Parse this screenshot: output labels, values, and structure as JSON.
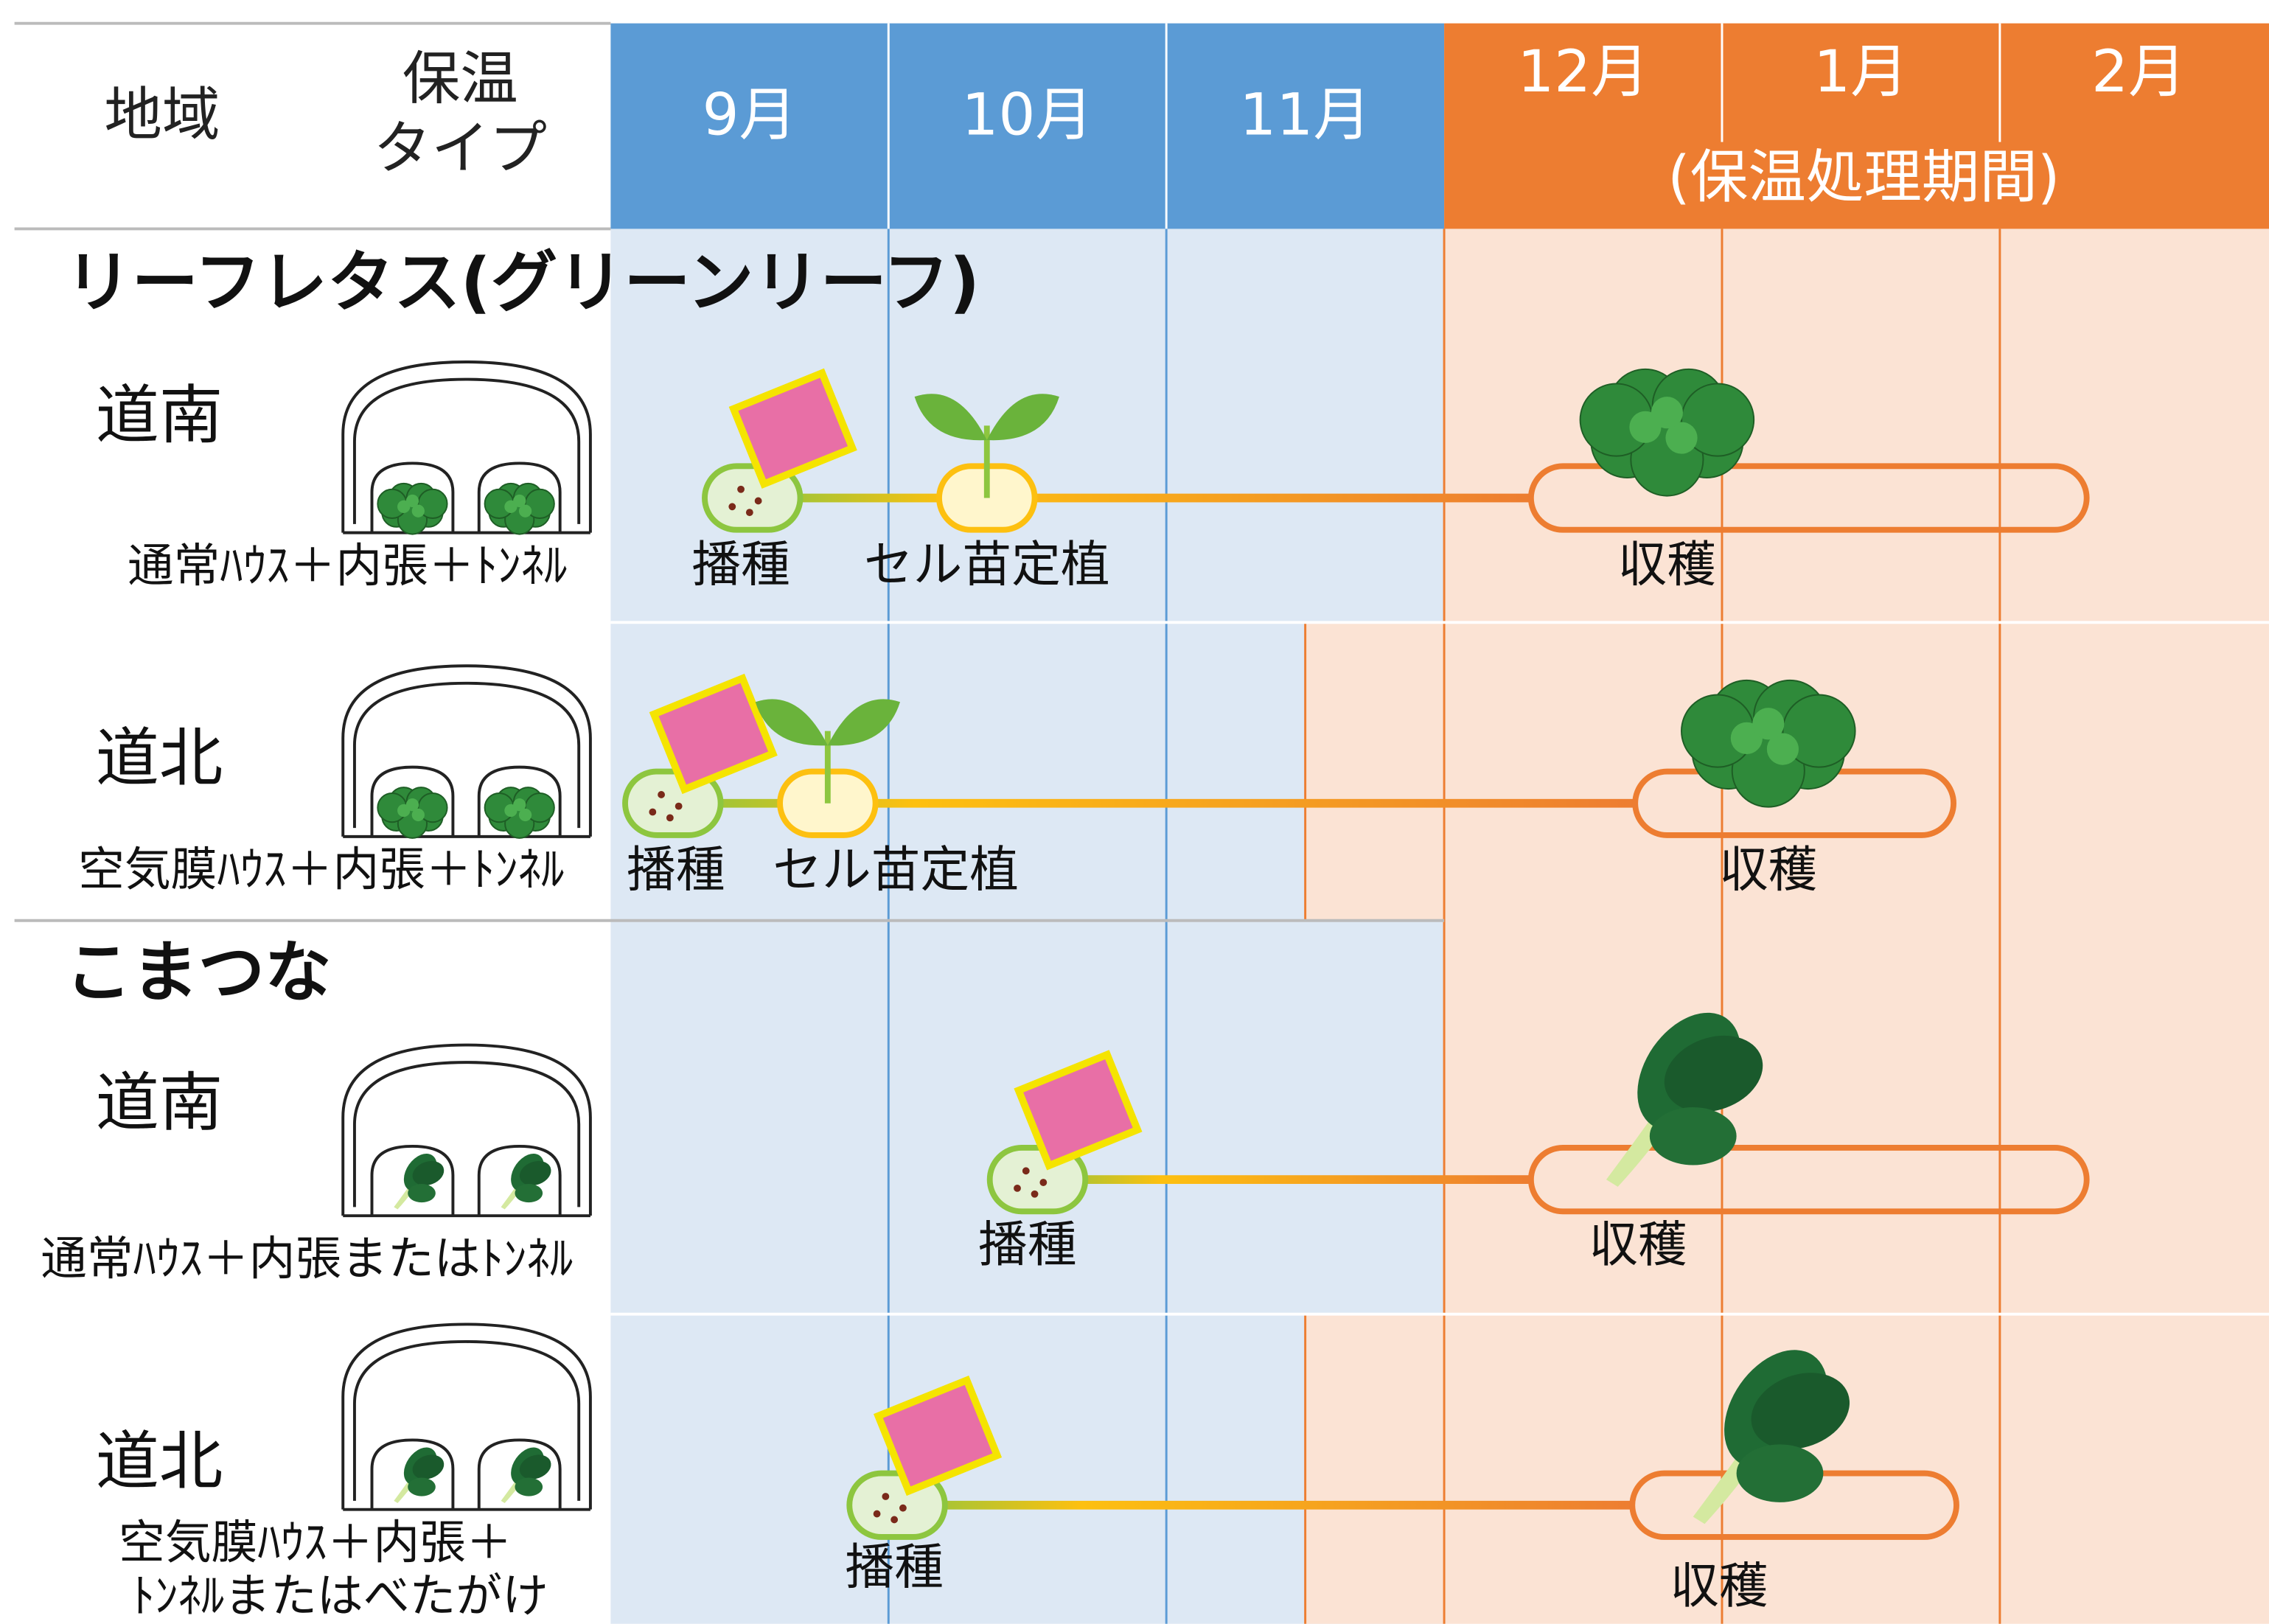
{
  "header": {
    "region": "地域",
    "type_line1": "保温",
    "type_line2": "タイプ",
    "months": [
      "9月",
      "10月",
      "11月",
      "12月",
      "1月",
      "2月"
    ],
    "period": "(保温処理期間)"
  },
  "sections": [
    {
      "title": "リーフレタス(グリーンリーフ)",
      "rows": [
        {
          "region": "道南",
          "type": [
            "通常ﾊｳｽ＋内張＋ﾄﾝﾈﾙ"
          ],
          "labels": [
            "播種",
            "セル苗定植",
            "収穫"
          ]
        },
        {
          "region": "道北",
          "type": [
            "空気膜ﾊｳｽ＋内張＋ﾄﾝﾈﾙ"
          ],
          "labels": [
            "播種",
            "セル苗定植",
            "収穫"
          ]
        }
      ]
    },
    {
      "title": "こまつな",
      "rows": [
        {
          "region": "道南",
          "type": [
            "通常ﾊｳｽ＋内張またはﾄﾝﾈﾙ"
          ],
          "labels": [
            "播種",
            "収穫"
          ]
        },
        {
          "region": "道北",
          "type": [
            "空気膜ﾊｳｽ＋内張＋",
            "ﾄﾝﾈﾙまたはべたがけ"
          ],
          "labels": [
            "播種",
            "収穫"
          ]
        }
      ]
    }
  ]
}
